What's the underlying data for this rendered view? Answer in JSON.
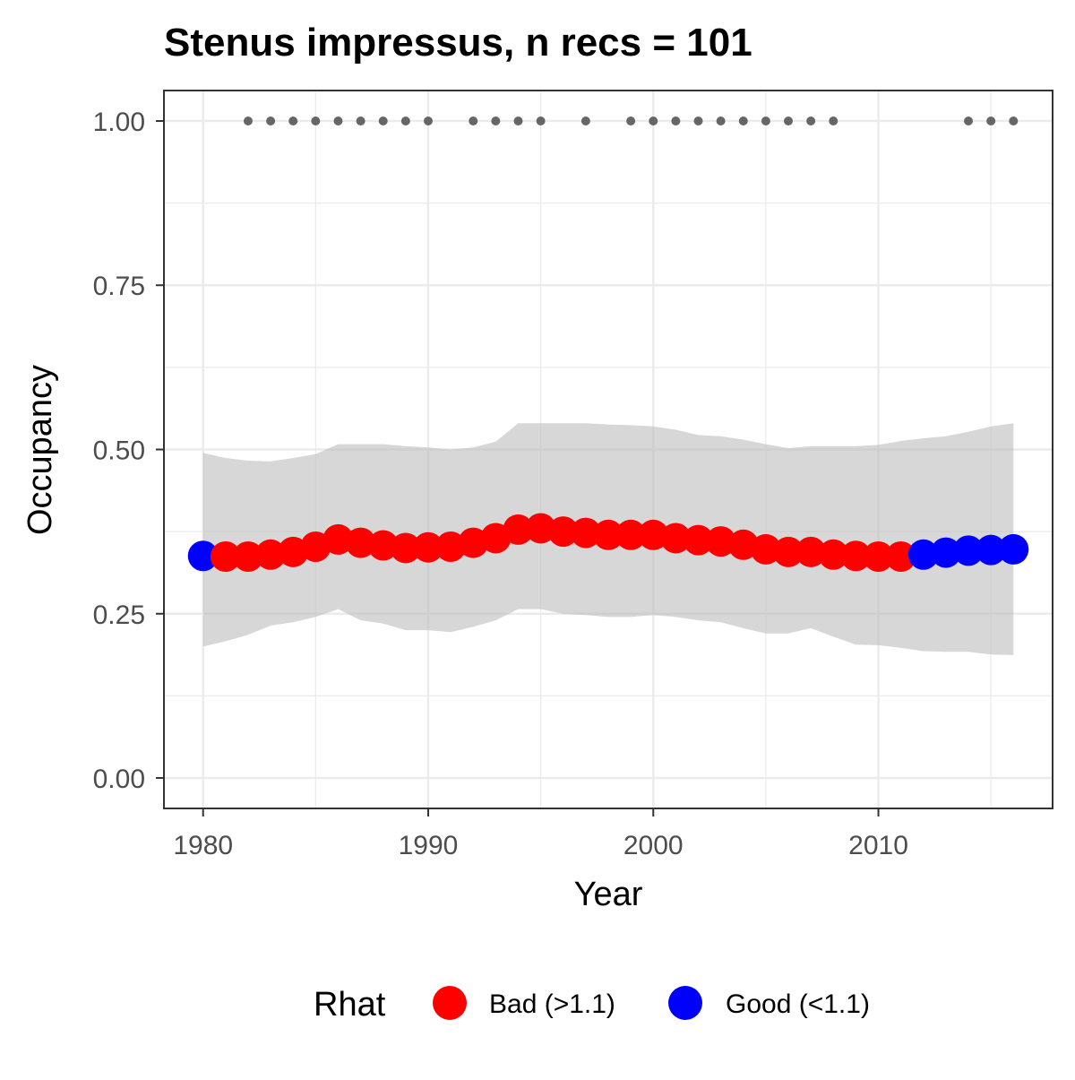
{
  "chart_data": {
    "type": "line",
    "title": "Stenus impressus, n recs = 101",
    "xlabel": "Year",
    "ylabel": "Occupancy",
    "xlim": [
      1978.3,
      2017.7
    ],
    "ylim": [
      -0.045,
      1.045
    ],
    "x_ticks": [
      1980,
      1990,
      2000,
      2010
    ],
    "x_tick_labels": [
      "1980",
      "1990",
      "2000",
      "2010"
    ],
    "y_ticks": [
      0,
      0.25,
      0.5,
      0.75,
      1.0
    ],
    "y_tick_labels": [
      "0.00",
      "0.25",
      "0.50",
      "0.75",
      "1.00"
    ],
    "grid": true,
    "legend": {
      "title": "Rhat",
      "position": "bottom",
      "entries": [
        {
          "label": "Bad (>1.1)",
          "color": "#FF0000"
        },
        {
          "label": "Good (<1.1)",
          "color": "#0000FF"
        }
      ]
    },
    "years": [
      1980,
      1981,
      1982,
      1983,
      1984,
      1985,
      1986,
      1987,
      1988,
      1989,
      1990,
      1991,
      1992,
      1993,
      1994,
      1995,
      1996,
      1997,
      1998,
      1999,
      2000,
      2001,
      2002,
      2003,
      2004,
      2005,
      2006,
      2007,
      2008,
      2009,
      2010,
      2011,
      2012,
      2013,
      2014,
      2015,
      2016
    ],
    "occupancy": [
      0.338,
      0.337,
      0.337,
      0.34,
      0.344,
      0.352,
      0.363,
      0.358,
      0.354,
      0.35,
      0.351,
      0.352,
      0.358,
      0.365,
      0.378,
      0.38,
      0.375,
      0.373,
      0.37,
      0.37,
      0.37,
      0.365,
      0.362,
      0.36,
      0.355,
      0.348,
      0.344,
      0.344,
      0.34,
      0.338,
      0.337,
      0.337,
      0.34,
      0.343,
      0.346,
      0.347,
      0.348
    ],
    "rhat_status": [
      "Good",
      "Bad",
      "Bad",
      "Bad",
      "Bad",
      "Bad",
      "Bad",
      "Bad",
      "Bad",
      "Bad",
      "Bad",
      "Bad",
      "Bad",
      "Bad",
      "Bad",
      "Bad",
      "Bad",
      "Bad",
      "Bad",
      "Bad",
      "Bad",
      "Bad",
      "Bad",
      "Bad",
      "Bad",
      "Bad",
      "Bad",
      "Bad",
      "Bad",
      "Bad",
      "Bad",
      "Bad",
      "Good",
      "Good",
      "Good",
      "Good",
      "Good"
    ],
    "ci_upper": [
      0.495,
      0.487,
      0.483,
      0.482,
      0.487,
      0.493,
      0.508,
      0.508,
      0.508,
      0.505,
      0.503,
      0.5,
      0.503,
      0.512,
      0.54,
      0.54,
      0.54,
      0.54,
      0.538,
      0.537,
      0.535,
      0.53,
      0.522,
      0.52,
      0.515,
      0.508,
      0.502,
      0.505,
      0.505,
      0.505,
      0.507,
      0.513,
      0.517,
      0.52,
      0.527,
      0.535,
      0.54
    ],
    "ci_lower": [
      0.2,
      0.208,
      0.218,
      0.232,
      0.237,
      0.245,
      0.257,
      0.24,
      0.235,
      0.225,
      0.225,
      0.222,
      0.23,
      0.24,
      0.257,
      0.257,
      0.25,
      0.248,
      0.245,
      0.245,
      0.248,
      0.245,
      0.24,
      0.237,
      0.228,
      0.22,
      0.22,
      0.228,
      0.215,
      0.203,
      0.202,
      0.198,
      0.193,
      0.192,
      0.192,
      0.188,
      0.187
    ],
    "detection_years": [
      1982,
      1983,
      1984,
      1985,
      1986,
      1987,
      1988,
      1989,
      1990,
      1992,
      1993,
      1994,
      1995,
      1997,
      1999,
      2000,
      2001,
      2002,
      2003,
      2004,
      2005,
      2006,
      2007,
      2008,
      2014,
      2015,
      2016
    ],
    "detection_value": 1.0,
    "colors": {
      "bad": "#FF0000",
      "good": "#0000FF",
      "ribbon": "#BDBDBD",
      "detection": "#666666",
      "grid": "#EBEBEB",
      "panel_border": "#333333"
    }
  }
}
